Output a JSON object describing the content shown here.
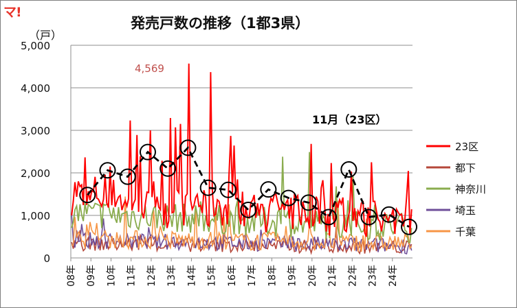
{
  "logo_text": "マ!",
  "chart_data": {
    "type": "line",
    "title": "発売戸数の推移（1都3県）",
    "unit_label": "（戸）",
    "ylim": [
      0,
      5000
    ],
    "y_ticks": [
      0,
      1000,
      2000,
      3000,
      4000,
      5000
    ],
    "y_tick_labels": [
      "0",
      "1,000",
      "2,000",
      "3,000",
      "4,000",
      "5,000"
    ],
    "x_tick_labels": [
      "08年",
      "09年",
      "10年",
      "11年",
      "12年",
      "13年",
      "14年",
      "15年",
      "16年",
      "17年",
      "18年",
      "19年",
      "20年",
      "21年",
      "22年",
      "23年",
      "24年"
    ],
    "grid": true,
    "legend_position": "right",
    "series": [
      {
        "name": "23区",
        "color": "#ff0000"
      },
      {
        "name": "都下",
        "color": "#b5473a"
      },
      {
        "name": "神奈川",
        "color": "#8aac4e"
      },
      {
        "name": "埼玉",
        "color": "#6e4e99"
      },
      {
        "name": "千葉",
        "color": "#f79646"
      }
    ],
    "november_23ku": {
      "label": "11月（23区）",
      "x": [
        2008.83,
        2009.83,
        2010.83,
        2011.83,
        2012.83,
        2013.83,
        2014.83,
        2015.83,
        2016.83,
        2017.83,
        2018.83,
        2019.83,
        2020.83,
        2021.83,
        2022.83,
        2023.83,
        2024.83
      ],
      "y": [
        1480,
        2060,
        1910,
        2490,
        2100,
        2590,
        1650,
        1600,
        1130,
        1610,
        1410,
        1300,
        960,
        2080,
        960,
        1020,
        730
      ]
    },
    "peak_annotation": {
      "text": "4,569",
      "x": 2013.9,
      "y": 4569,
      "color": "#c0504d"
    }
  }
}
